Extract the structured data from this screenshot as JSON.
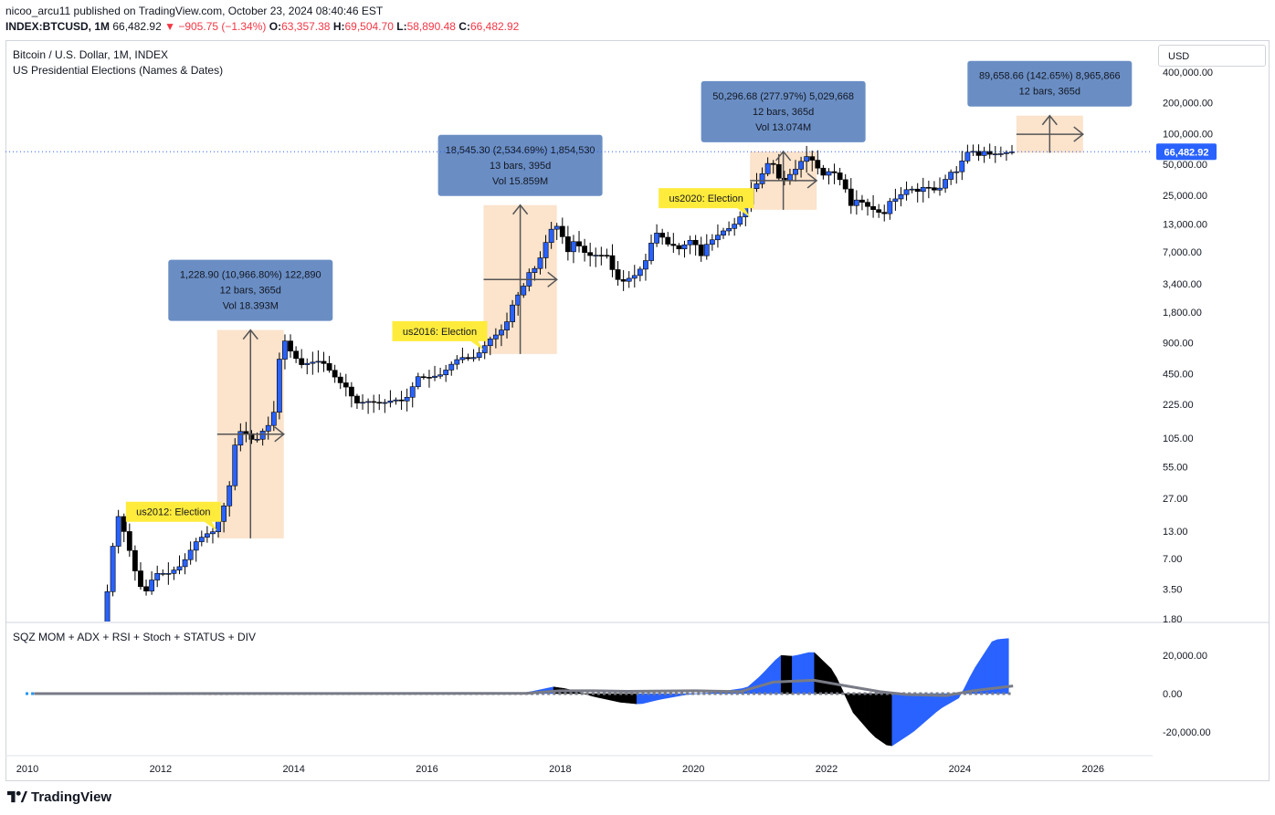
{
  "header": {
    "user": "nicoo_arcu11",
    "published_text": "published on TradingView.com, October 23, 2024 08:40:46 EST",
    "symbol": "INDEX:BTCUSD, 1M",
    "price": "66,482.92",
    "change": "−905.75 (−1.34%)",
    "o_label": "O:",
    "o_val": "63,357.38",
    "h_label": "H:",
    "h_val": "69,504.70",
    "l_label": "L:",
    "l_val": "58,890.48",
    "c_label": "C:",
    "c_val": "66,482.92"
  },
  "legend": {
    "title": "Bitcoin / U.S. Dollar, 1M, INDEX",
    "subtitle": "US Presidential Elections (Names & Dates)",
    "indicator": "SQZ MOM + ADX + RSI + Stoch + STATUS + DIV"
  },
  "currency_button": "USD",
  "footer": {
    "brand": "TradingView"
  },
  "colors": {
    "up": "#2962ff",
    "down": "#000000",
    "range_fill": "#fbe3cc",
    "info_box": "#6a8ec4",
    "election_label": "#ffeb3b",
    "signal": "#787b86"
  },
  "chart_data": {
    "type": "candlestick",
    "title": "Bitcoin / U.S. Dollar, 1M, INDEX",
    "y_scale": "log",
    "last_price": 66482.92,
    "last_price_label": "66,482.92",
    "price_ticks": [
      {
        "v": 400000,
        "l": "400,000.00"
      },
      {
        "v": 200000,
        "l": "200,000.00"
      },
      {
        "v": 100000,
        "l": "100,000.00"
      },
      {
        "v": 50000,
        "l": "50,000.00"
      },
      {
        "v": 25000,
        "l": "25,000.00"
      },
      {
        "v": 13000,
        "l": "13,000.00"
      },
      {
        "v": 7000,
        "l": "7,000.00"
      },
      {
        "v": 3400,
        "l": "3,400.00"
      },
      {
        "v": 1800,
        "l": "1,800.00"
      },
      {
        "v": 900,
        "l": "900.00"
      },
      {
        "v": 450,
        "l": "450.00"
      },
      {
        "v": 225,
        "l": "225.00"
      },
      {
        "v": 105,
        "l": "105.00"
      },
      {
        "v": 55,
        "l": "55.00"
      },
      {
        "v": 27,
        "l": "27.00"
      },
      {
        "v": 13,
        "l": "13.00"
      },
      {
        "v": 7,
        "l": "7.00"
      },
      {
        "v": 3.5,
        "l": "3.50"
      },
      {
        "v": 1.8,
        "l": "1.80"
      }
    ],
    "x_ticks": [
      {
        "year": 2010,
        "l": "2010"
      },
      {
        "year": 2012,
        "l": "2012"
      },
      {
        "year": 2014,
        "l": "2014"
      },
      {
        "year": 2016,
        "l": "2016"
      },
      {
        "year": 2018,
        "l": "2018"
      },
      {
        "year": 2020,
        "l": "2020"
      },
      {
        "year": 2022,
        "l": "2022"
      },
      {
        "year": 2024,
        "l": "2024"
      },
      {
        "year": 2026,
        "l": "2026"
      }
    ],
    "price_path": [
      [
        2011.2,
        1.3
      ],
      [
        2011.3,
        4
      ],
      [
        2011.4,
        14
      ],
      [
        2011.45,
        18
      ],
      [
        2011.55,
        12
      ],
      [
        2011.65,
        7
      ],
      [
        2011.75,
        4
      ],
      [
        2011.85,
        3.2
      ],
      [
        2012.0,
        5
      ],
      [
        2012.2,
        5
      ],
      [
        2012.4,
        6
      ],
      [
        2012.6,
        10
      ],
      [
        2012.75,
        12
      ],
      [
        2012.9,
        13
      ],
      [
        2013.0,
        20
      ],
      [
        2013.1,
        30
      ],
      [
        2013.2,
        90
      ],
      [
        2013.3,
        130
      ],
      [
        2013.4,
        110
      ],
      [
        2013.5,
        95
      ],
      [
        2013.6,
        120
      ],
      [
        2013.7,
        140
      ],
      [
        2013.8,
        200
      ],
      [
        2013.9,
        1100
      ],
      [
        2014.0,
        800
      ],
      [
        2014.1,
        650
      ],
      [
        2014.2,
        550
      ],
      [
        2014.35,
        580
      ],
      [
        2014.5,
        600
      ],
      [
        2014.6,
        500
      ],
      [
        2014.75,
        380
      ],
      [
        2014.9,
        320
      ],
      [
        2015.0,
        230
      ],
      [
        2015.2,
        240
      ],
      [
        2015.4,
        230
      ],
      [
        2015.6,
        250
      ],
      [
        2015.75,
        240
      ],
      [
        2015.85,
        320
      ],
      [
        2015.95,
        420
      ],
      [
        2016.1,
        410
      ],
      [
        2016.3,
        440
      ],
      [
        2016.5,
        600
      ],
      [
        2016.6,
        650
      ],
      [
        2016.75,
        620
      ],
      [
        2016.9,
        750
      ],
      [
        2017.0,
        950
      ],
      [
        2017.1,
        1050
      ],
      [
        2017.2,
        1200
      ],
      [
        2017.3,
        1500
      ],
      [
        2017.4,
        2500
      ],
      [
        2017.5,
        2800
      ],
      [
        2017.6,
        4300
      ],
      [
        2017.7,
        4800
      ],
      [
        2017.8,
        6400
      ],
      [
        2017.9,
        10000
      ],
      [
        2018.0,
        13500
      ],
      [
        2018.1,
        10500
      ],
      [
        2018.2,
        7000
      ],
      [
        2018.3,
        9200
      ],
      [
        2018.4,
        7400
      ],
      [
        2018.5,
        6400
      ],
      [
        2018.65,
        6500
      ],
      [
        2018.8,
        6400
      ],
      [
        2018.9,
        4000
      ],
      [
        2019.0,
        3500
      ],
      [
        2019.1,
        3800
      ],
      [
        2019.2,
        4100
      ],
      [
        2019.35,
        5300
      ],
      [
        2019.45,
        8500
      ],
      [
        2019.5,
        11000
      ],
      [
        2019.6,
        10000
      ],
      [
        2019.7,
        8300
      ],
      [
        2019.8,
        8000
      ],
      [
        2019.9,
        7200
      ],
      [
        2020.0,
        9300
      ],
      [
        2020.1,
        8600
      ],
      [
        2020.2,
        6400
      ],
      [
        2020.3,
        8700
      ],
      [
        2020.4,
        9400
      ],
      [
        2020.5,
        11000
      ],
      [
        2020.6,
        11600
      ],
      [
        2020.75,
        13800
      ],
      [
        2020.85,
        19000
      ],
      [
        2020.95,
        29000
      ],
      [
        2021.05,
        33000
      ],
      [
        2021.15,
        45000
      ],
      [
        2021.25,
        58000
      ],
      [
        2021.35,
        37000
      ],
      [
        2021.45,
        35000
      ],
      [
        2021.55,
        41000
      ],
      [
        2021.65,
        47000
      ],
      [
        2021.75,
        61000
      ],
      [
        2021.85,
        57000
      ],
      [
        2021.95,
        46000
      ],
      [
        2022.05,
        38000
      ],
      [
        2022.15,
        45000
      ],
      [
        2022.25,
        38000
      ],
      [
        2022.35,
        31000
      ],
      [
        2022.45,
        19800
      ],
      [
        2022.55,
        23000
      ],
      [
        2022.7,
        19400
      ],
      [
        2022.85,
        17100
      ],
      [
        2022.95,
        16500
      ],
      [
        2023.05,
        23000
      ],
      [
        2023.15,
        23000
      ],
      [
        2023.25,
        28000
      ],
      [
        2023.35,
        29000
      ],
      [
        2023.45,
        27200
      ],
      [
        2023.55,
        30400
      ],
      [
        2023.65,
        29200
      ],
      [
        2023.75,
        27000
      ],
      [
        2023.85,
        34600
      ],
      [
        2023.95,
        42000
      ],
      [
        2024.05,
        42500
      ],
      [
        2024.15,
        61000
      ],
      [
        2024.25,
        71000
      ],
      [
        2024.35,
        60000
      ],
      [
        2024.45,
        67000
      ],
      [
        2024.55,
        62000
      ],
      [
        2024.65,
        64000
      ],
      [
        2024.75,
        63400
      ],
      [
        2024.8,
        66482
      ]
    ],
    "measure_boxes": [
      {
        "x0": 2012.85,
        "x1": 2013.85,
        "lo": 11,
        "hi": 1200,
        "lines": [
          "1,228.90 (10,966.80%) 122,890",
          "12 bars, 365d",
          "Vol 18.393M"
        ]
      },
      {
        "x0": 2016.85,
        "x1": 2017.95,
        "lo": 700,
        "hi": 20000,
        "lines": [
          "18,545.30 (2,534.69%) 1,854,530",
          "13 bars, 395d",
          "Vol 15.859M"
        ]
      },
      {
        "x0": 2020.85,
        "x1": 2021.85,
        "lo": 18000,
        "hi": 67000,
        "lines": [
          "50,296.68 (277.97%) 5,029,668",
          "12 bars, 365d",
          "Vol 13.074M"
        ]
      },
      {
        "x0": 2024.85,
        "x1": 2025.85,
        "lo": 65000,
        "hi": 150000,
        "lines": [
          "89,658.66 (142.65%) 8,965,866",
          "12 bars, 365d"
        ]
      }
    ],
    "elections": [
      {
        "year": 2012.85,
        "price": 12,
        "label": "us2012: Election"
      },
      {
        "year": 2016.85,
        "price": 700,
        "label": "us2016: Election"
      },
      {
        "year": 2020.85,
        "price": 14000,
        "label": "us2020: Election"
      }
    ],
    "oscillator": {
      "ticks": [
        {
          "v": 20000,
          "l": "20,000.00"
        },
        {
          "v": 0,
          "l": "0.00"
        },
        {
          "v": -20000,
          "l": "-20,000.00"
        }
      ],
      "momentum": [
        [
          2016.9,
          0
        ],
        [
          2017.5,
          600
        ],
        [
          2017.9,
          3500
        ],
        [
          2018.1,
          2500
        ],
        [
          2018.5,
          -1500
        ],
        [
          2018.9,
          -4500
        ],
        [
          2019.2,
          -5500
        ],
        [
          2019.5,
          -3000
        ],
        [
          2019.9,
          -500
        ],
        [
          2020.3,
          500
        ],
        [
          2020.8,
          3000
        ],
        [
          2021.0,
          9000
        ],
        [
          2021.3,
          20000
        ],
        [
          2021.5,
          19500
        ],
        [
          2021.8,
          22000
        ],
        [
          2022.1,
          12000
        ],
        [
          2022.4,
          -10000
        ],
        [
          2022.7,
          -22000
        ],
        [
          2022.95,
          -28000
        ],
        [
          2023.3,
          -20000
        ],
        [
          2023.7,
          -8000
        ],
        [
          2024.0,
          -2000
        ],
        [
          2024.2,
          12000
        ],
        [
          2024.5,
          28000
        ],
        [
          2024.8,
          29000
        ]
      ],
      "signal": [
        [
          2010.1,
          0
        ],
        [
          2016.9,
          100
        ],
        [
          2017.5,
          200
        ],
        [
          2018.0,
          1500
        ],
        [
          2018.5,
          1500
        ],
        [
          2019.0,
          1200
        ],
        [
          2020.0,
          1500
        ],
        [
          2020.7,
          1000
        ],
        [
          2021.2,
          6000
        ],
        [
          2021.8,
          7000
        ],
        [
          2022.3,
          4000
        ],
        [
          2022.8,
          1000
        ],
        [
          2023.2,
          -500
        ],
        [
          2023.8,
          -1000
        ],
        [
          2024.2,
          1500
        ],
        [
          2024.8,
          4000
        ]
      ]
    }
  }
}
